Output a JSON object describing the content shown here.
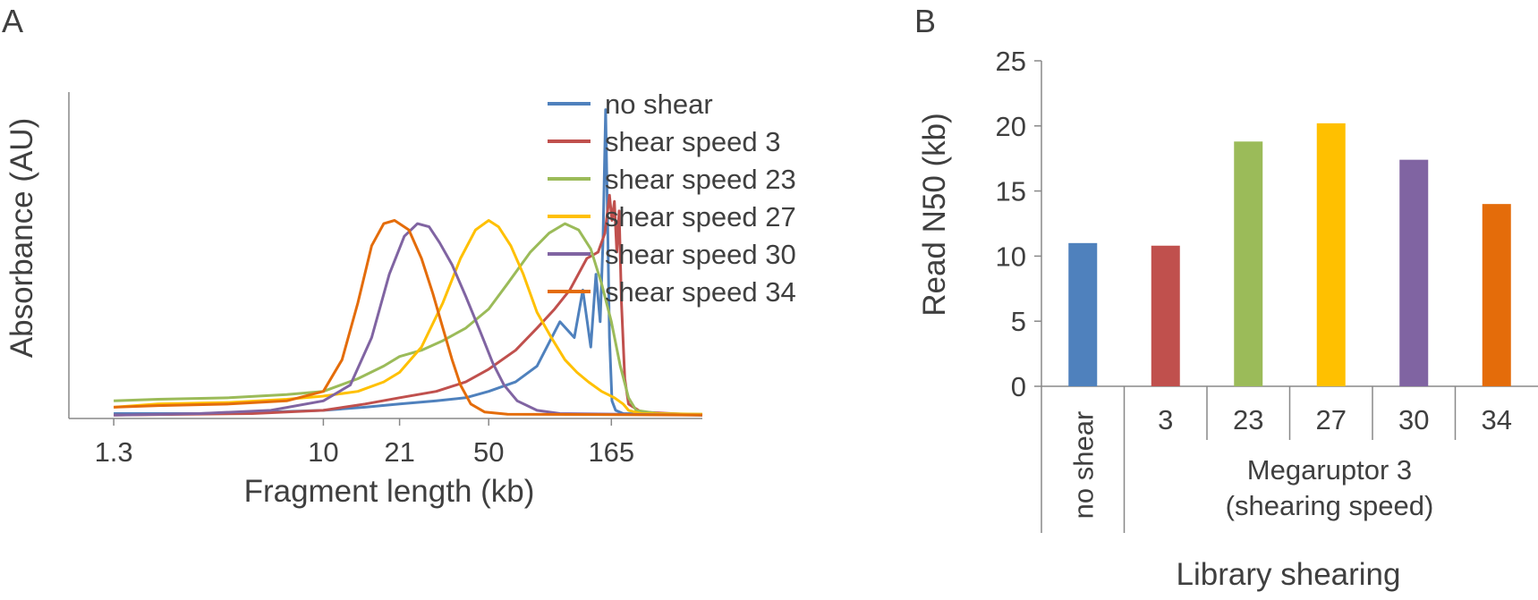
{
  "panels": {
    "a_label": "A",
    "b_label": "B"
  },
  "chart_data": [
    {
      "type": "line",
      "panel": "A",
      "title": "",
      "xlabel": "Fragment length (kb)",
      "ylabel": "Absorbance (AU)",
      "x_tick_labels": [
        "1.3",
        "10",
        "21",
        "50",
        "165"
      ],
      "x_tick_values": [
        1.3,
        10,
        21,
        50,
        165
      ],
      "y_tick_labels": [],
      "grid": false,
      "legend_position": "top-right",
      "series": [
        {
          "name": "no shear",
          "color": "#4f81bd",
          "points": [
            [
              1.3,
              0.01
            ],
            [
              3,
              0.01
            ],
            [
              6,
              0.015
            ],
            [
              10,
              0.02
            ],
            [
              15,
              0.03
            ],
            [
              21,
              0.04
            ],
            [
              30,
              0.05
            ],
            [
              40,
              0.06
            ],
            [
              50,
              0.08
            ],
            [
              65,
              0.11
            ],
            [
              80,
              0.16
            ],
            [
              100,
              0.3
            ],
            [
              115,
              0.25
            ],
            [
              125,
              0.4
            ],
            [
              135,
              0.22
            ],
            [
              142,
              0.45
            ],
            [
              148,
              0.3
            ],
            [
              152,
              0.55
            ],
            [
              156,
              0.97
            ],
            [
              159,
              0.62
            ],
            [
              162,
              0.25
            ],
            [
              166,
              0.05
            ],
            [
              172,
              0.02
            ],
            [
              185,
              0.01
            ],
            [
              400,
              0.005
            ]
          ]
        },
        {
          "name": "shear speed 3",
          "color": "#c0504d",
          "points": [
            [
              1.3,
              0.005
            ],
            [
              5,
              0.01
            ],
            [
              10,
              0.02
            ],
            [
              15,
              0.04
            ],
            [
              21,
              0.06
            ],
            [
              30,
              0.08
            ],
            [
              40,
              0.11
            ],
            [
              50,
              0.15
            ],
            [
              65,
              0.21
            ],
            [
              80,
              0.28
            ],
            [
              95,
              0.34
            ],
            [
              110,
              0.4
            ],
            [
              130,
              0.5
            ],
            [
              145,
              0.52
            ],
            [
              155,
              0.58
            ],
            [
              162,
              0.7
            ],
            [
              166,
              0.62
            ],
            [
              170,
              0.68
            ],
            [
              174,
              0.52
            ],
            [
              178,
              0.65
            ],
            [
              182,
              0.36
            ],
            [
              188,
              0.12
            ],
            [
              195,
              0.04
            ],
            [
              220,
              0.015
            ],
            [
              400,
              0.005
            ]
          ]
        },
        {
          "name": "shear speed 23",
          "color": "#9bbb59",
          "points": [
            [
              1.3,
              0.05
            ],
            [
              2,
              0.055
            ],
            [
              4,
              0.06
            ],
            [
              7,
              0.07
            ],
            [
              10,
              0.08
            ],
            [
              14,
              0.12
            ],
            [
              18,
              0.16
            ],
            [
              21,
              0.19
            ],
            [
              26,
              0.21
            ],
            [
              32,
              0.24
            ],
            [
              40,
              0.28
            ],
            [
              50,
              0.34
            ],
            [
              60,
              0.42
            ],
            [
              75,
              0.52
            ],
            [
              90,
              0.58
            ],
            [
              105,
              0.61
            ],
            [
              120,
              0.59
            ],
            [
              135,
              0.53
            ],
            [
              150,
              0.42
            ],
            [
              165,
              0.3
            ],
            [
              180,
              0.16
            ],
            [
              195,
              0.06
            ],
            [
              210,
              0.02
            ],
            [
              260,
              0.01
            ],
            [
              400,
              0.008
            ]
          ]
        },
        {
          "name": "shear speed 27",
          "color": "#ffc000",
          "points": [
            [
              1.3,
              0.03
            ],
            [
              2,
              0.04
            ],
            [
              4,
              0.045
            ],
            [
              7,
              0.055
            ],
            [
              10,
              0.065
            ],
            [
              14,
              0.08
            ],
            [
              18,
              0.11
            ],
            [
              21,
              0.14
            ],
            [
              26,
              0.22
            ],
            [
              32,
              0.36
            ],
            [
              38,
              0.5
            ],
            [
              44,
              0.59
            ],
            [
              50,
              0.62
            ],
            [
              55,
              0.6
            ],
            [
              62,
              0.54
            ],
            [
              70,
              0.45
            ],
            [
              80,
              0.33
            ],
            [
              92,
              0.25
            ],
            [
              105,
              0.18
            ],
            [
              118,
              0.14
            ],
            [
              132,
              0.11
            ],
            [
              150,
              0.08
            ],
            [
              170,
              0.06
            ],
            [
              185,
              0.04
            ],
            [
              195,
              0.02
            ],
            [
              220,
              0.01
            ],
            [
              400,
              0.008
            ]
          ]
        },
        {
          "name": "shear speed 30",
          "color": "#8064a2",
          "points": [
            [
              1.3,
              0.005
            ],
            [
              3,
              0.01
            ],
            [
              6,
              0.02
            ],
            [
              10,
              0.05
            ],
            [
              13,
              0.1
            ],
            [
              16,
              0.25
            ],
            [
              19,
              0.45
            ],
            [
              22,
              0.57
            ],
            [
              25,
              0.61
            ],
            [
              28,
              0.6
            ],
            [
              31,
              0.55
            ],
            [
              35,
              0.48
            ],
            [
              40,
              0.38
            ],
            [
              46,
              0.27
            ],
            [
              52,
              0.17
            ],
            [
              58,
              0.1
            ],
            [
              66,
              0.05
            ],
            [
              80,
              0.02
            ],
            [
              100,
              0.01
            ],
            [
              400,
              0.005
            ]
          ]
        },
        {
          "name": "shear speed 34",
          "color": "#e46c0a",
          "points": [
            [
              1.3,
              0.03
            ],
            [
              2,
              0.035
            ],
            [
              4,
              0.04
            ],
            [
              7,
              0.05
            ],
            [
              10,
              0.08
            ],
            [
              12,
              0.18
            ],
            [
              14,
              0.36
            ],
            [
              16,
              0.54
            ],
            [
              18,
              0.61
            ],
            [
              20,
              0.62
            ],
            [
              23,
              0.59
            ],
            [
              26,
              0.5
            ],
            [
              29,
              0.39
            ],
            [
              32,
              0.28
            ],
            [
              35,
              0.18
            ],
            [
              38,
              0.1
            ],
            [
              42,
              0.04
            ],
            [
              48,
              0.015
            ],
            [
              60,
              0.008
            ],
            [
              400,
              0.005
            ]
          ]
        }
      ]
    },
    {
      "type": "bar",
      "panel": "B",
      "title": "",
      "ylabel": "Read N50 (kb)",
      "xlabel": "Library shearing",
      "ylim": [
        0,
        25
      ],
      "y_ticks": [
        "0",
        "5",
        "10",
        "15",
        "20",
        "25"
      ],
      "categories": [
        "no shear",
        "3",
        "23",
        "27",
        "30",
        "34"
      ],
      "group_label_line1": "Megaruptor 3",
      "group_label_line2": "(shearing speed)",
      "values": [
        11.0,
        10.8,
        18.8,
        20.2,
        17.4,
        14.0
      ],
      "colors": [
        "#4f81bd",
        "#c0504d",
        "#9bbb59",
        "#ffc000",
        "#8064a2",
        "#e46c0a"
      ],
      "grid": false
    }
  ]
}
